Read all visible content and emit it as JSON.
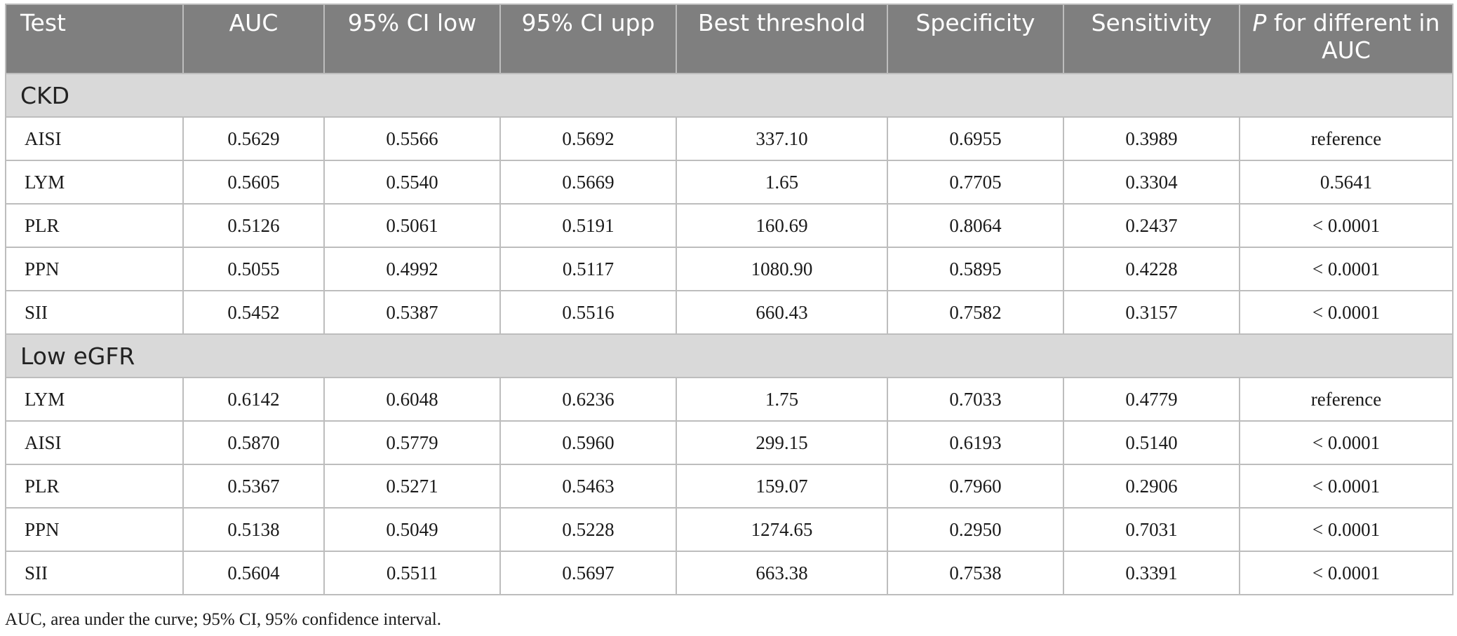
{
  "table": {
    "headers": [
      "Test",
      "AUC",
      "95% CI low",
      "95% CI upp",
      "Best threshold",
      "Specificity",
      "Sensitivity",
      {
        "italic": "P",
        "rest": " for different in AUC"
      }
    ],
    "groups": [
      {
        "label": "CKD",
        "rows": [
          [
            "AISI",
            "0.5629",
            "0.5566",
            "0.5692",
            "337.10",
            "0.6955",
            "0.3989",
            "reference"
          ],
          [
            "LYM",
            "0.5605",
            "0.5540",
            "0.5669",
            "1.65",
            "0.7705",
            "0.3304",
            "0.5641"
          ],
          [
            "PLR",
            "0.5126",
            "0.5061",
            "0.5191",
            "160.69",
            "0.8064",
            "0.2437",
            "< 0.0001"
          ],
          [
            "PPN",
            "0.5055",
            "0.4992",
            "0.5117",
            "1080.90",
            "0.5895",
            "0.4228",
            "< 0.0001"
          ],
          [
            "SII",
            "0.5452",
            "0.5387",
            "0.5516",
            "660.43",
            "0.7582",
            "0.3157",
            "< 0.0001"
          ]
        ]
      },
      {
        "label": "Low eGFR",
        "rows": [
          [
            "LYM",
            "0.6142",
            "0.6048",
            "0.6236",
            "1.75",
            "0.7033",
            "0.4779",
            "reference"
          ],
          [
            "AISI",
            "0.5870",
            "0.5779",
            "0.5960",
            "299.15",
            "0.6193",
            "0.5140",
            "< 0.0001"
          ],
          [
            "PLR",
            "0.5367",
            "0.5271",
            "0.5463",
            "159.07",
            "0.7960",
            "0.2906",
            "< 0.0001"
          ],
          [
            "PPN",
            "0.5138",
            "0.5049",
            "0.5228",
            "1274.65",
            "0.2950",
            "0.7031",
            "< 0.0001"
          ],
          [
            "SII",
            "0.5604",
            "0.5511",
            "0.5697",
            "663.38",
            "0.7538",
            "0.3391",
            "< 0.0001"
          ]
        ]
      }
    ]
  },
  "footnote": "AUC, area under the curve; 95% CI, 95% confidence interval.",
  "colors": {
    "header_bg": "#7f7f7f",
    "header_text": "#ffffff",
    "group_bg": "#d9d9d9",
    "border": "#bdbdbd"
  }
}
